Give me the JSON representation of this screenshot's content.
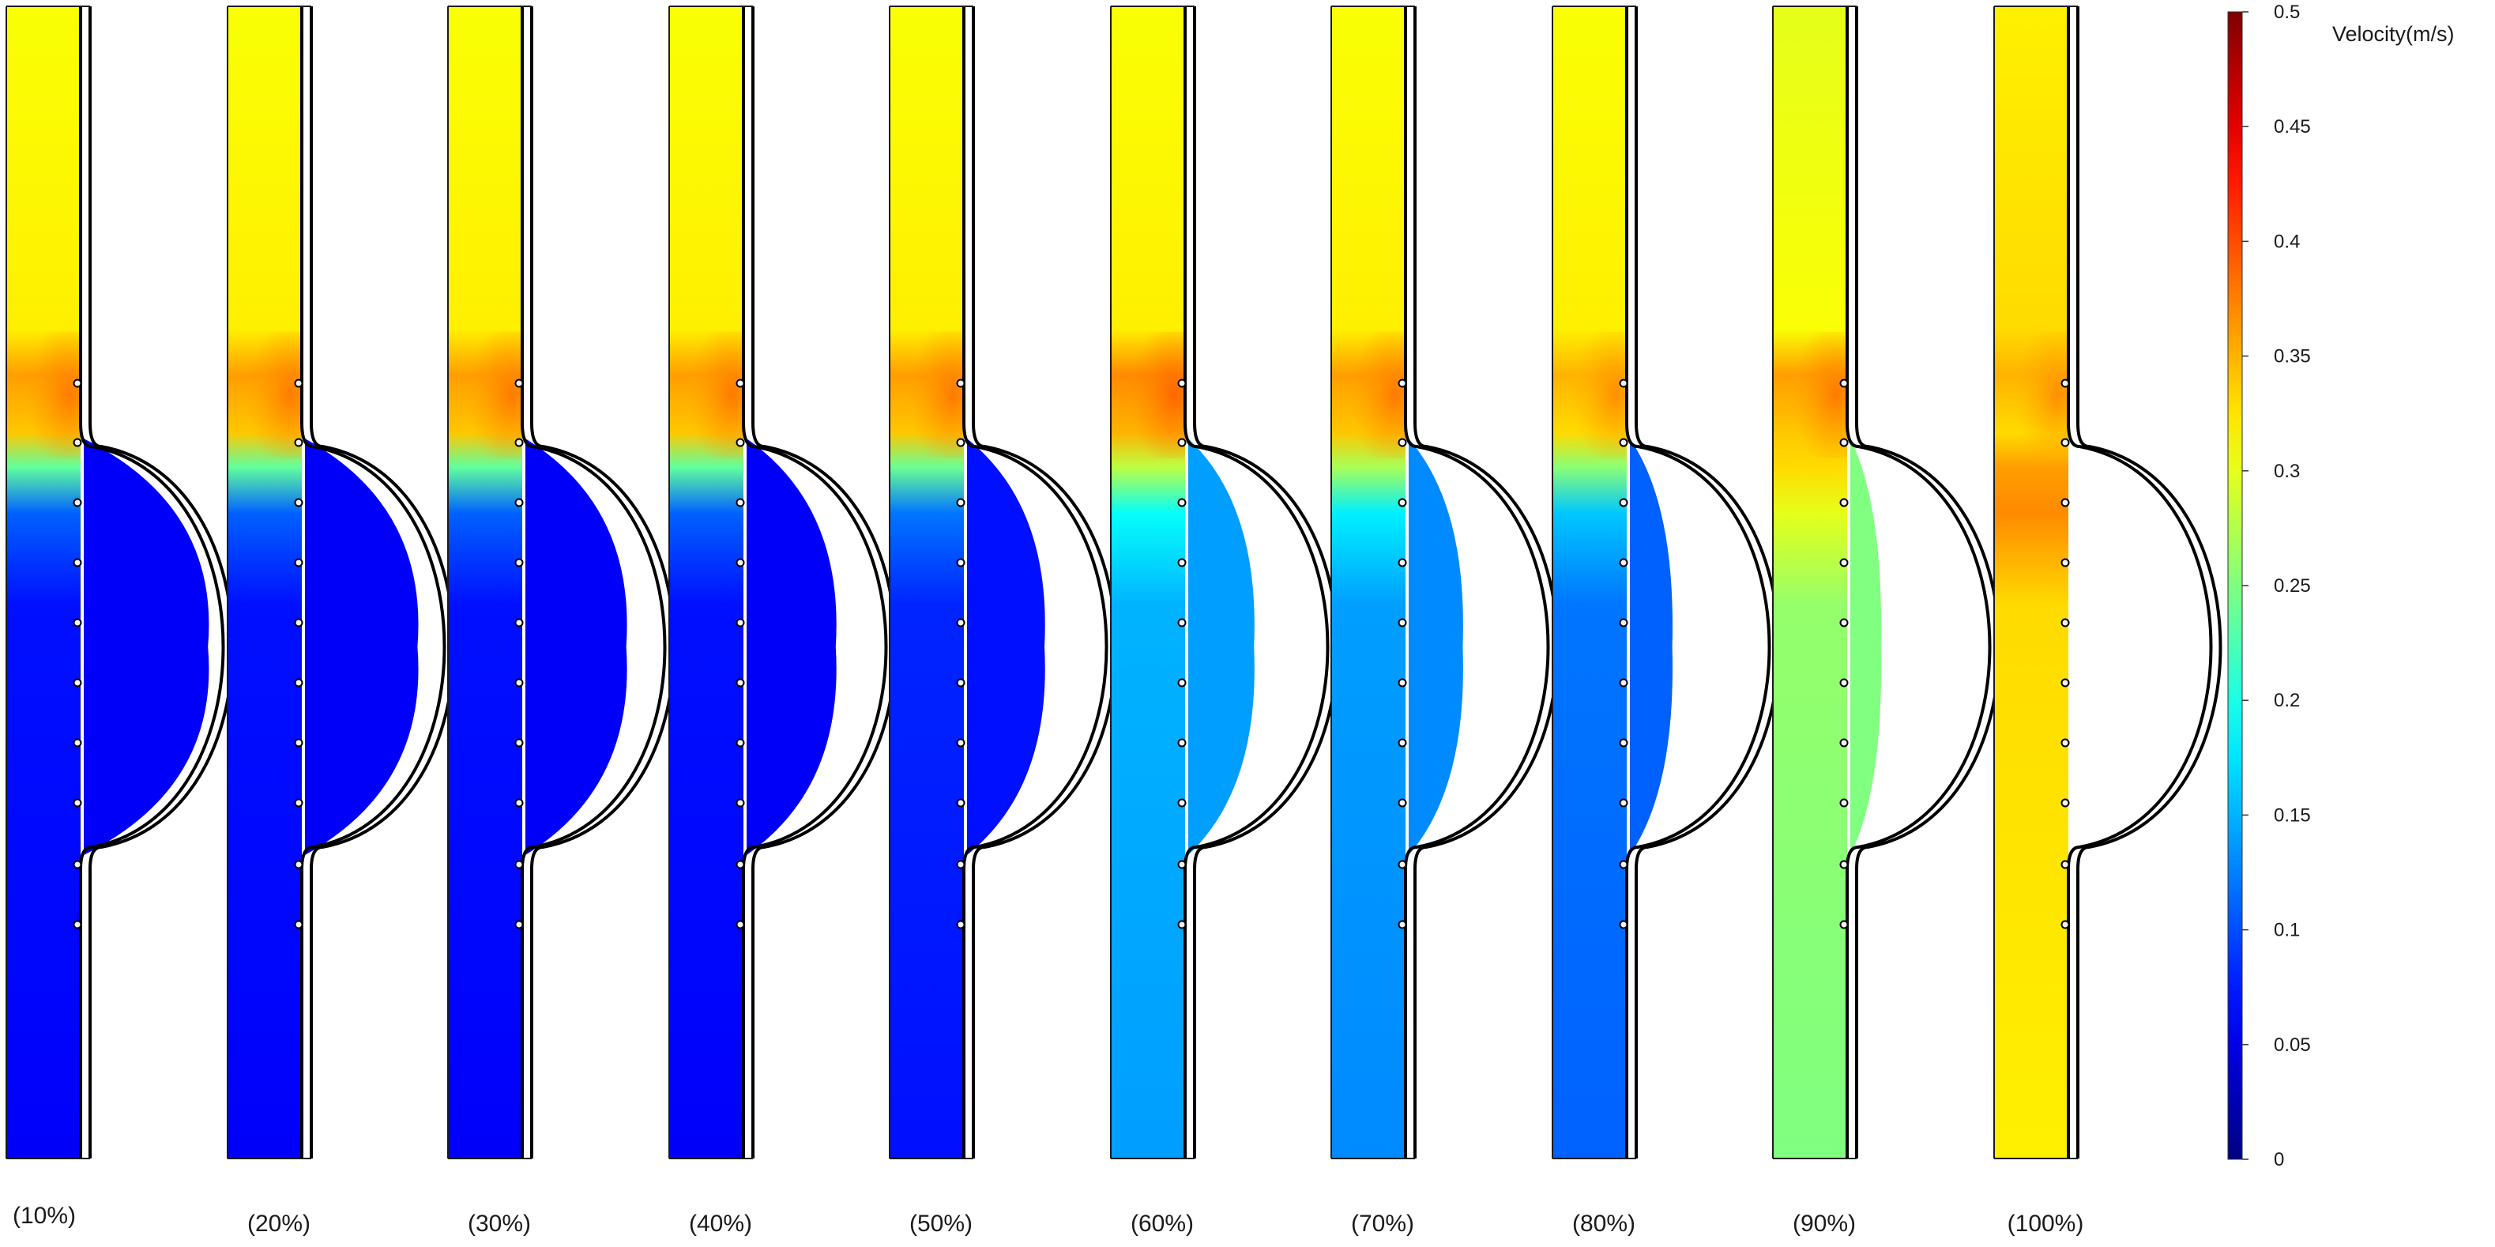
{
  "chart_data": {
    "type": "heatmap",
    "colormap": "jet",
    "colorbar": {
      "title": "Velocity(m/s)",
      "min": 0,
      "max": 0.5,
      "ticks": [
        0,
        0.05,
        0.1,
        0.15,
        0.2,
        0.25,
        0.3,
        0.35,
        0.4,
        0.45,
        0.5
      ],
      "tick_labels": [
        "0",
        "0.05",
        "0.1",
        "0.15",
        "0.2",
        "0.25",
        "0.3",
        "0.35",
        "0.4",
        "0.45",
        "0.5"
      ]
    },
    "panels": [
      {
        "label": "(10%)",
        "opening": 0.1,
        "upper_velocity": 0.31,
        "lower_velocity": 0.07,
        "jet_velocity": 0.36
      },
      {
        "label": "(20%)",
        "opening": 0.2,
        "upper_velocity": 0.31,
        "lower_velocity": 0.07,
        "jet_velocity": 0.36
      },
      {
        "label": "(30%)",
        "opening": 0.3,
        "upper_velocity": 0.31,
        "lower_velocity": 0.07,
        "jet_velocity": 0.36
      },
      {
        "label": "(40%)",
        "opening": 0.4,
        "upper_velocity": 0.31,
        "lower_velocity": 0.07,
        "jet_velocity": 0.36
      },
      {
        "label": "(50%)",
        "opening": 0.5,
        "upper_velocity": 0.31,
        "lower_velocity": 0.08,
        "jet_velocity": 0.36
      },
      {
        "label": "(60%)",
        "opening": 0.6,
        "upper_velocity": 0.31,
        "lower_velocity": 0.15,
        "jet_velocity": 0.37
      },
      {
        "label": "(70%)",
        "opening": 0.7,
        "upper_velocity": 0.31,
        "lower_velocity": 0.14,
        "jet_velocity": 0.36
      },
      {
        "label": "(80%)",
        "opening": 0.8,
        "upper_velocity": 0.31,
        "lower_velocity": 0.12,
        "jet_velocity": 0.35
      },
      {
        "label": "(90%)",
        "opening": 0.9,
        "upper_velocity": 0.3,
        "lower_velocity": 0.26,
        "jet_velocity": 0.36
      },
      {
        "label": "(100%)",
        "opening": 1.0,
        "upper_velocity": 0.32,
        "lower_velocity": 0.33,
        "jet_velocity": 0.35
      }
    ]
  }
}
